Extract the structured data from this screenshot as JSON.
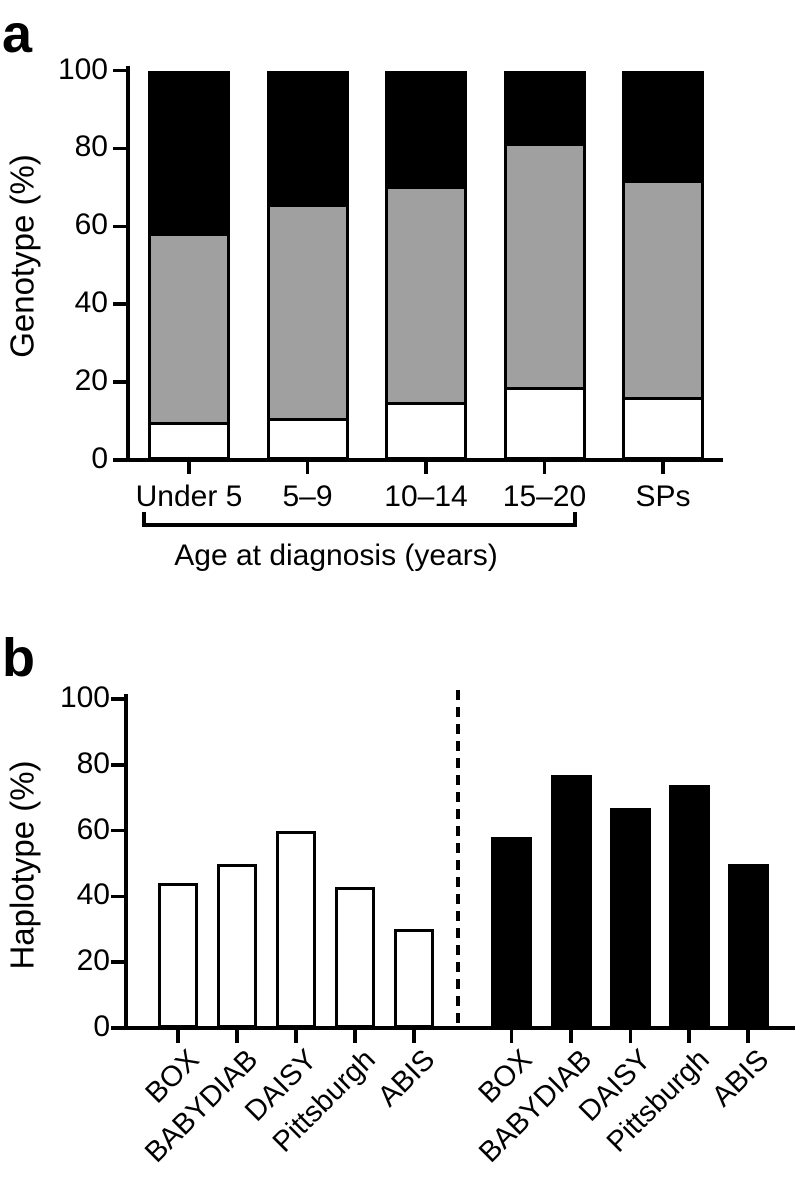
{
  "figure": {
    "background": "#ffffff",
    "bar_gray": "#a0a0a0",
    "bar_black": "#000000",
    "bar_white": "#ffffff"
  },
  "chart_data": [
    {
      "type": "bar",
      "subtype": "stacked",
      "panel_label": "a",
      "title": "",
      "ylabel": "Genotype (%)",
      "xlabel": "Age at diagnosis (years)",
      "ylim": [
        0,
        100
      ],
      "yticks": [
        0,
        20,
        40,
        60,
        80,
        100
      ],
      "grid": false,
      "legend": false,
      "categories": [
        "Under 5",
        "5–9",
        "10–14",
        "15–20",
        "SPs"
      ],
      "series": [
        {
          "name": "white-segment",
          "color": "#ffffff",
          "values": [
            9,
            10,
            14,
            18,
            15.5
          ]
        },
        {
          "name": "gray-segment",
          "color": "#a0a0a0",
          "values": [
            48.5,
            55,
            55.5,
            62.5,
            55.5
          ]
        },
        {
          "name": "black-segment",
          "color": "#000000",
          "values": [
            42.5,
            35,
            30.5,
            19.5,
            29
          ]
        }
      ],
      "bracket": {
        "from": "Under 5",
        "to": "15–20",
        "label": "Age at diagnosis (years)"
      }
    },
    {
      "type": "bar",
      "subtype": "grouped-by-fill",
      "panel_label": "b",
      "title": "",
      "ylabel": "Haplotype (%)",
      "xlabel": "",
      "ylim": [
        0,
        100
      ],
      "yticks": [
        0,
        20,
        40,
        60,
        80,
        100
      ],
      "grid": false,
      "legend": false,
      "divider": {
        "style": "dashed",
        "position": "between-white-and-black-groups"
      },
      "categories": [
        "BOX",
        "BABYDIAB",
        "DAISY",
        "Pittsburgh",
        "ABIS"
      ],
      "series": [
        {
          "name": "white-bars",
          "color": "#ffffff",
          "values": [
            44,
            50,
            60,
            43,
            30
          ]
        },
        {
          "name": "black-bars",
          "color": "#000000",
          "values": [
            58,
            77,
            67,
            74,
            50
          ]
        }
      ]
    }
  ]
}
